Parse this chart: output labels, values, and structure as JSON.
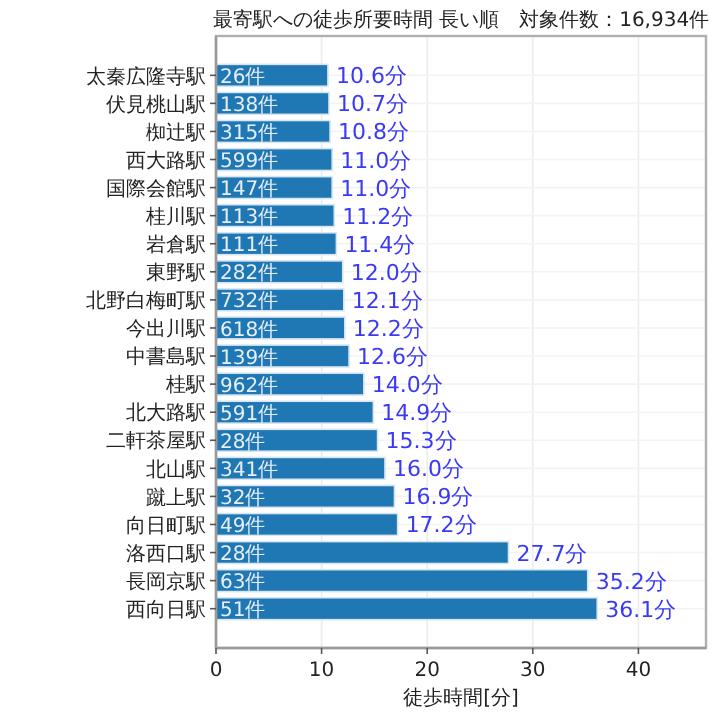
{
  "chart_data": {
    "type": "bar",
    "orientation": "horizontal",
    "title": "最寄駅への徒歩所要時間 長い順　対象件数：16,934件",
    "xlabel": "徒歩時間[分]",
    "categories": [
      "太秦広隆寺駅",
      "伏見桃山駅",
      "椥辻駅",
      "西大路駅",
      "国際会館駅",
      "桂川駅",
      "岩倉駅",
      "東野駅",
      "北野白梅町駅",
      "今出川駅",
      "中書島駅",
      "桂駅",
      "北大路駅",
      "二軒茶屋駅",
      "北山駅",
      "蹴上駅",
      "向日町駅",
      "洛西口駅",
      "長岡京駅",
      "西向日駅"
    ],
    "values": [
      10.6,
      10.7,
      10.8,
      11.0,
      11.0,
      11.2,
      11.4,
      12.0,
      12.1,
      12.2,
      12.6,
      14.0,
      14.9,
      15.3,
      16.0,
      16.9,
      17.2,
      27.7,
      35.2,
      36.1
    ],
    "value_labels": [
      "10.6分",
      "10.7分",
      "10.8分",
      "11.0分",
      "11.0分",
      "11.2分",
      "11.4分",
      "12.0分",
      "12.1分",
      "12.2分",
      "12.6分",
      "14.0分",
      "14.9分",
      "15.3分",
      "16.0分",
      "16.9分",
      "17.2分",
      "27.7分",
      "35.2分",
      "36.1分"
    ],
    "annotations": [
      {
        "text": "26件",
        "y": "太秦広隆寺駅"
      },
      {
        "text": "138件",
        "y": "伏見桃山駅"
      },
      {
        "text": "315件",
        "y": "椥辻駅"
      },
      {
        "text": "599件",
        "y": "西大路駅"
      },
      {
        "text": "147件",
        "y": "国際会館駅"
      },
      {
        "text": "113件",
        "y": "桂川駅"
      },
      {
        "text": "111件",
        "y": "岩倉駅"
      },
      {
        "text": "282件",
        "y": "東野駅"
      },
      {
        "text": "732件",
        "y": "北野白梅町駅"
      },
      {
        "text": "618件",
        "y": "今出川駅"
      },
      {
        "text": "139件",
        "y": "中書島駅"
      },
      {
        "text": "962件",
        "y": "桂駅"
      },
      {
        "text": "591件",
        "y": "北大路駅"
      },
      {
        "text": "28件",
        "y": "二軒茶屋駅"
      },
      {
        "text": "341件",
        "y": "北山駅"
      },
      {
        "text": "32件",
        "y": "蹴上駅"
      },
      {
        "text": "49件",
        "y": "向日町駅"
      },
      {
        "text": "28件",
        "y": "洛西口駅"
      },
      {
        "text": "63件",
        "y": "長岡京駅"
      },
      {
        "text": "51件",
        "y": "西向日駅"
      }
    ],
    "color": "#1f77b4",
    "xlim": [
      0,
      46.4
    ],
    "xticks": [
      0,
      10,
      20,
      30,
      40
    ],
    "grid": true
  }
}
